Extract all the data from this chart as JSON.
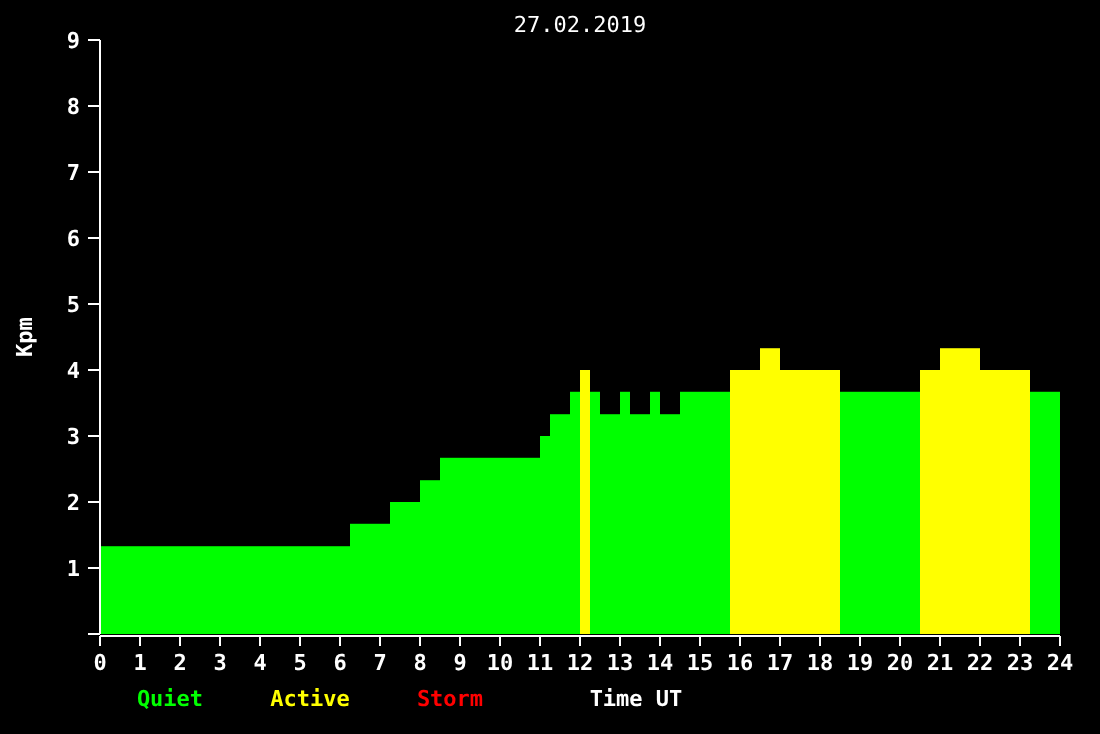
{
  "chart_data": {
    "type": "histogram",
    "title": "27.02.2019",
    "xlabel": "Time UT",
    "ylabel": "Kpm",
    "bins": [
      0,
      6.25,
      7.25,
      8,
      8.5,
      11,
      11.25,
      11.75,
      12,
      12.25,
      12.5,
      13,
      13.25,
      13.75,
      14,
      14.5,
      15.75,
      16.5,
      17,
      18.5,
      20.5,
      21,
      22,
      23.25,
      24
    ],
    "series": [
      {
        "name": "Quiet",
        "color": "#00ff00",
        "values": [
          1.33,
          1.67,
          2,
          2.33,
          2.67,
          3,
          3.33,
          3.67,
          null,
          3.67,
          3.33,
          3.67,
          3.33,
          3.67,
          3.33,
          3.67,
          null,
          null,
          null,
          3.67,
          null,
          null,
          null,
          3.67
        ]
      },
      {
        "name": "Active",
        "color": "#ffff00",
        "values": [
          null,
          null,
          null,
          null,
          null,
          null,
          null,
          null,
          4,
          null,
          null,
          null,
          null,
          null,
          null,
          null,
          4,
          4.33,
          4,
          null,
          4,
          4.33,
          4,
          null
        ]
      }
    ],
    "xlim": [
      0,
      24
    ],
    "xticks": [
      0,
      1,
      2,
      3,
      4,
      5,
      6,
      7,
      8,
      9,
      10,
      11,
      12,
      13,
      14,
      15,
      16,
      17,
      18,
      19,
      20,
      21,
      22,
      23,
      24
    ],
    "ylim": [
      0,
      9
    ],
    "yticks": [
      {
        "value": 0,
        "label": null
      },
      1,
      2,
      3,
      4,
      5,
      6,
      7,
      8,
      9
    ],
    "annotations": [
      "Storm"
    ],
    "grid": false,
    "legend": "bottom left"
  }
}
